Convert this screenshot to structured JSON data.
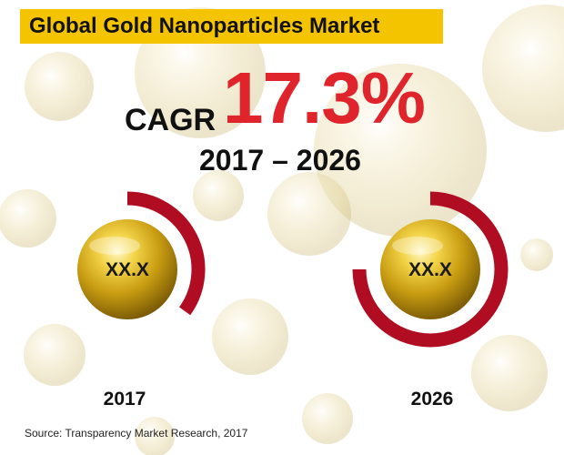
{
  "title": "Global Gold Nanoparticles Market",
  "cagr": {
    "label": "CAGR",
    "value": "17.3%",
    "period": "2017 – 2026"
  },
  "markets": [
    {
      "year": "2017",
      "value": "XX.X",
      "share": 0.35
    },
    {
      "year": "2026",
      "value": "XX.X",
      "share": 0.75
    }
  ],
  "source": "Source: Transparency Market Research, 2017",
  "colors": {
    "banner": "#f5c400",
    "cagr_value": "#e0242c",
    "ring": "#b00d22",
    "gold": "#c9a214"
  }
}
